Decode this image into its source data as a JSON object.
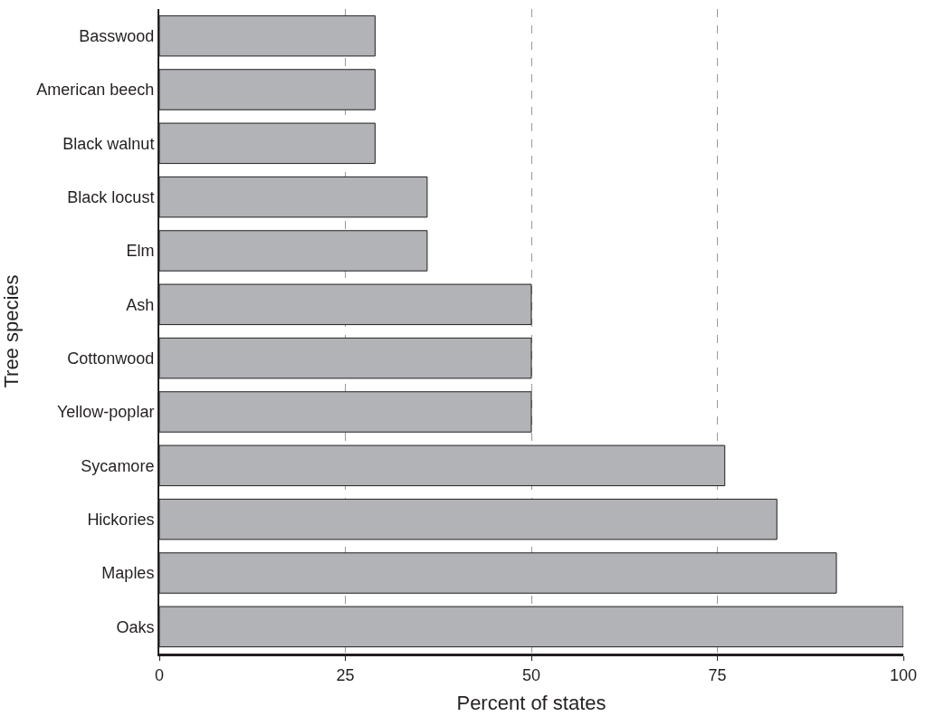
{
  "chart_data": {
    "type": "bar",
    "orientation": "horizontal",
    "xlabel": "Percent of states",
    "ylabel": "Tree species",
    "categories": [
      "Basswood",
      "American beech",
      "Black walnut",
      "Black locust",
      "Elm",
      "Ash",
      "Cottonwood",
      "Yellow-poplar",
      "Sycamore",
      "Hickories",
      "Maples",
      "Oaks"
    ],
    "values": [
      29,
      29,
      29,
      36,
      36,
      50,
      50,
      50,
      76,
      83,
      91,
      100
    ],
    "color": "#b1b3b6",
    "xlim": [
      0,
      100
    ],
    "xticks": [
      0,
      25,
      50,
      75,
      100
    ],
    "grid": "x",
    "line_style": "dashed",
    "legend": false
  }
}
